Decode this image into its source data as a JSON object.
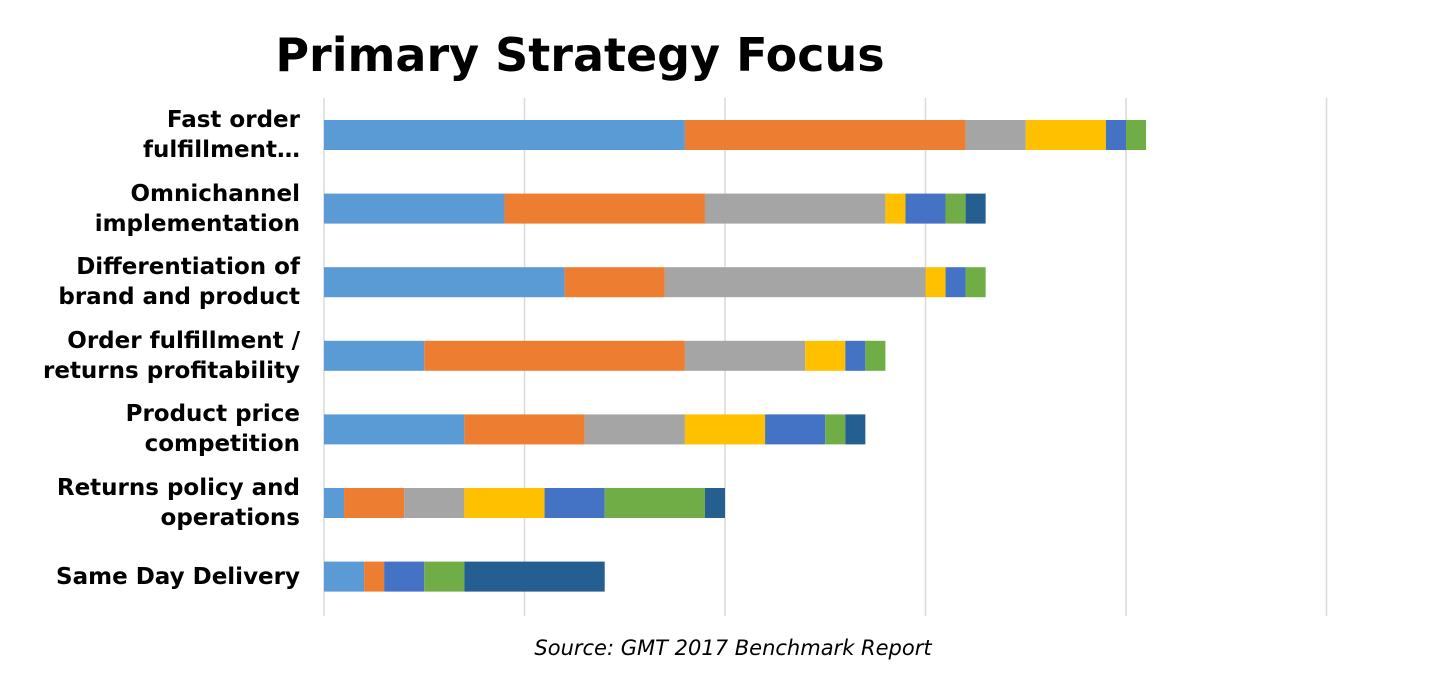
{
  "chart_data": {
    "type": "bar",
    "orientation": "horizontal",
    "stacked": true,
    "title": "Primary Strategy Focus",
    "source": "Source: GMT 2017 Benchmark Report",
    "categories": [
      [
        "Fast order",
        "fulfillment…"
      ],
      [
        "Omnichannel",
        "implementation"
      ],
      [
        "Differentiation of",
        "brand and product"
      ],
      [
        "Order fulfillment /",
        "returns profitability"
      ],
      [
        "Product price",
        "competition"
      ],
      [
        "Returns policy and",
        "operations"
      ],
      [
        "Same Day Delivery"
      ]
    ],
    "xlim": [
      0,
      50
    ],
    "grid": true,
    "legend": "none",
    "colors": [
      "#5B9BD5",
      "#ED7D31",
      "#A5A5A5",
      "#FFC000",
      "#4472C4",
      "#70AD47",
      "#255E91"
    ],
    "series": [
      {
        "values": [
          18,
          9,
          12,
          5,
          7,
          1,
          2
        ]
      },
      {
        "values": [
          14,
          10,
          5,
          13,
          6,
          3,
          1
        ]
      },
      {
        "values": [
          3,
          9,
          13,
          6,
          5,
          3,
          0
        ]
      },
      {
        "values": [
          4,
          1,
          1,
          2,
          4,
          4,
          0
        ]
      },
      {
        "values": [
          1,
          2,
          1,
          1,
          3,
          3,
          2
        ]
      },
      {
        "values": [
          1,
          1,
          1,
          1,
          1,
          5,
          2
        ]
      },
      {
        "values": [
          0,
          1,
          0,
          0,
          1,
          1,
          7
        ]
      }
    ]
  }
}
